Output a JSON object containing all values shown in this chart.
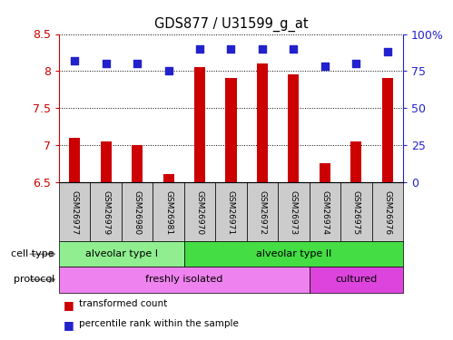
{
  "title": "GDS877 / U31599_g_at",
  "samples": [
    "GSM26977",
    "GSM26979",
    "GSM26980",
    "GSM26981",
    "GSM26970",
    "GSM26971",
    "GSM26972",
    "GSM26973",
    "GSM26974",
    "GSM26975",
    "GSM26976"
  ],
  "transformed_count": [
    7.1,
    7.05,
    7.0,
    6.6,
    8.05,
    7.9,
    8.1,
    7.95,
    6.75,
    7.05,
    7.9
  ],
  "percentile_rank": [
    82,
    80,
    80,
    75,
    90,
    90,
    90,
    90,
    78,
    80,
    88
  ],
  "ylim_left": [
    6.5,
    8.5
  ],
  "yticks_left": [
    6.5,
    7.0,
    7.5,
    8.0,
    8.5
  ],
  "ylim_right": [
    0,
    100
  ],
  "yticks_right": [
    0,
    25,
    50,
    75,
    100
  ],
  "cell_type_groups": [
    {
      "label": "alveolar type I",
      "start": 0,
      "end": 3,
      "color": "#90EE90"
    },
    {
      "label": "alveolar type II",
      "start": 4,
      "end": 10,
      "color": "#44DD44"
    }
  ],
  "protocol_groups": [
    {
      "label": "freshly isolated",
      "start": 0,
      "end": 7,
      "color": "#EE82EE"
    },
    {
      "label": "cultured",
      "start": 8,
      "end": 10,
      "color": "#DD44DD"
    }
  ],
  "bar_color": "#CC0000",
  "dot_color": "#2222CC",
  "grid_color": "#000000",
  "label_color_left": "#CC0000",
  "label_color_right": "#2222CC",
  "cell_type_label": "cell type",
  "protocol_label": "protocol",
  "legend_bar": "transformed count",
  "legend_dot": "percentile rank within the sample",
  "bar_width": 0.35,
  "dot_size": 40,
  "bg_color": "#FFFFFF"
}
